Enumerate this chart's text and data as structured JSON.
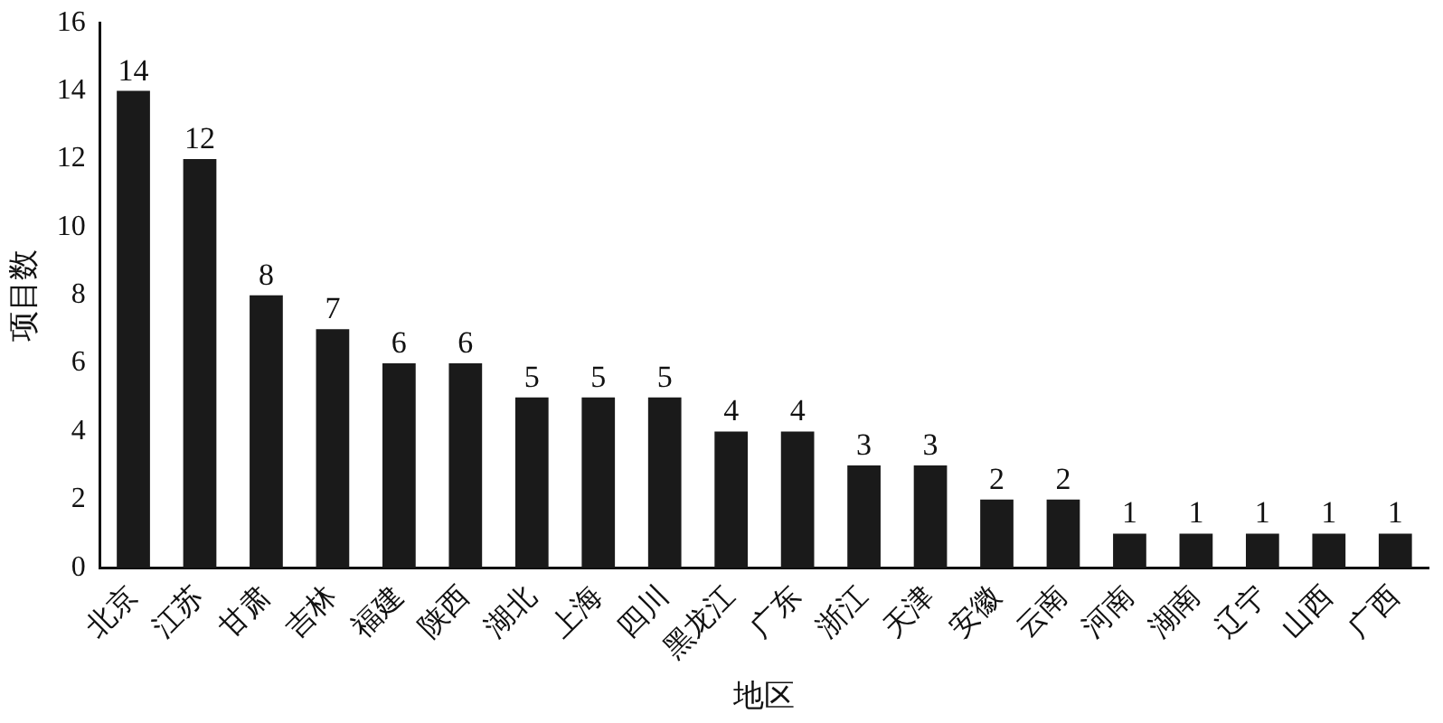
{
  "chart_data": {
    "type": "bar",
    "xlabel": "地区",
    "ylabel": "项目数",
    "categories": [
      "北京",
      "江苏",
      "甘肃",
      "吉林",
      "福建",
      "陕西",
      "湖北",
      "上海",
      "四川",
      "黑龙江",
      "广东",
      "浙江",
      "天津",
      "安徽",
      "云南",
      "河南",
      "湖南",
      "辽宁",
      "山西",
      "广西"
    ],
    "values": [
      14,
      12,
      8,
      7,
      6,
      6,
      5,
      5,
      5,
      4,
      4,
      3,
      3,
      2,
      2,
      1,
      1,
      1,
      1,
      1
    ],
    "color": "#1a1a1a",
    "ylim": [
      0,
      16
    ],
    "yticks": [
      0,
      2,
      4,
      6,
      8,
      10,
      12,
      14,
      16
    ],
    "grid": false,
    "legend": false,
    "data_labels": true
  }
}
